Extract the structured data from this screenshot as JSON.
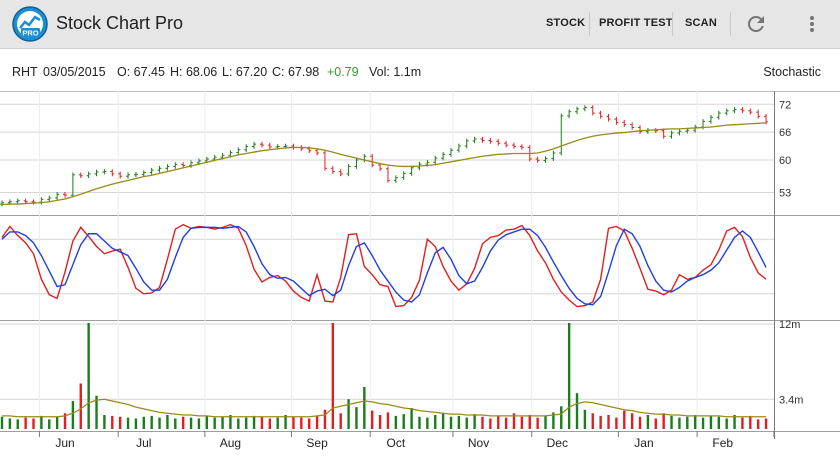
{
  "app": {
    "title": "Stock Chart Pro",
    "icon_label": "PRO",
    "accent": "#1a8fd6"
  },
  "toolbar": {
    "stock_label": "STOCK",
    "profit_test_label": "PROFIT TEST",
    "scan_label": "SCAN",
    "refresh_icon": "refresh-icon",
    "overflow_icon": "more-vert-icon"
  },
  "quote": {
    "symbol": "RHT",
    "date": "03/05/2015",
    "open": "O: 67.45",
    "high": "H: 68.06",
    "low": "L: 67.20",
    "close": "C: 67.98",
    "change": "+0.79",
    "volume": "Vol: 1.1m",
    "indicator": "Stochastic",
    "change_color": "#2e9c2e"
  },
  "chart_data": [
    {
      "type": "candlestick",
      "panel": "price",
      "y_ticks": [
        "72",
        "66",
        "60",
        "53"
      ],
      "ylim": [
        49,
        74
      ],
      "up_color": "#1b7d1b",
      "down_color": "#e02020",
      "ma_color": "#9a8a1a",
      "x": [
        0,
        2,
        4,
        6,
        8,
        10,
        12,
        14,
        16,
        18,
        20,
        22,
        24,
        26,
        28,
        30,
        32,
        34,
        36,
        38,
        40,
        42,
        44,
        46,
        48,
        50,
        52,
        54,
        56,
        58,
        60,
        62,
        64,
        66,
        68,
        70,
        72,
        74,
        76,
        78,
        80,
        82,
        84,
        86,
        88,
        90,
        92,
        94,
        96,
        98,
        100,
        102,
        104,
        106,
        108,
        110,
        112,
        114,
        116,
        118,
        120,
        122,
        124,
        126,
        128,
        130,
        132,
        134,
        136,
        138,
        140,
        142,
        144,
        146,
        148,
        150,
        152,
        154,
        156,
        158,
        160,
        162,
        164,
        166,
        168,
        170,
        172,
        174,
        176,
        178,
        180,
        182,
        184,
        186,
        188,
        190,
        192,
        194
      ],
      "close": [
        50.8,
        51,
        51.2,
        51,
        50.9,
        51.5,
        51.8,
        52.6,
        52.4,
        56.8,
        56.6,
        57,
        57.4,
        57.5,
        57,
        56.5,
        56.8,
        56.9,
        57.3,
        57.8,
        58.2,
        58.6,
        59,
        58.8,
        59.4,
        59.8,
        60.2,
        60.6,
        61,
        61.6,
        62.2,
        62.9,
        63.4,
        63.2,
        62.8,
        62.9,
        63,
        62.7,
        62.4,
        62,
        61.5,
        58.2,
        57.5,
        57,
        58.6,
        60,
        60.8,
        58.9,
        58.1,
        55.6,
        56.2,
        57.1,
        58.3,
        59.1,
        59.5,
        60.4,
        61.2,
        62.1,
        63,
        64.1,
        64.5,
        64.2,
        64,
        63.6,
        63.2,
        62.9,
        62.7,
        60.2,
        59.9,
        60.3,
        61.5,
        69.5,
        70.4,
        71,
        71.3,
        70.1,
        69.4,
        68.8,
        68.1,
        67.6,
        67,
        66.1,
        66.4,
        66.3,
        65.1,
        65.8,
        66.2,
        66.4,
        67.1,
        68.3,
        69.2,
        70.1,
        70.6,
        70.9,
        70.6,
        70.3,
        69.4,
        68.2
      ],
      "ma": [
        50.4,
        50.5,
        50.5,
        50.6,
        50.7,
        50.8,
        51,
        51.3,
        51.6,
        52.1,
        52.6,
        53.2,
        53.8,
        54.3,
        54.8,
        55.2,
        55.6,
        56,
        56.4,
        56.7,
        57.1,
        57.5,
        57.9,
        58.3,
        58.7,
        59.1,
        59.5,
        59.9,
        60.3,
        60.7,
        61.1,
        61.4,
        61.7,
        62,
        62.2,
        62.4,
        62.6,
        62.7,
        62.7,
        62.6,
        62.4,
        62.1,
        61.7,
        61.2,
        60.8,
        60.4,
        60,
        59.6,
        59.2,
        58.9,
        58.7,
        58.6,
        58.6,
        58.7,
        58.8,
        59,
        59.3,
        59.6,
        59.9,
        60.2,
        60.5,
        60.8,
        61,
        61.2,
        61.3,
        61.4,
        61.4,
        61.4,
        61.5,
        61.9,
        62.4,
        63,
        63.6,
        64.2,
        64.7,
        65.1,
        65.4,
        65.6,
        65.8,
        65.9,
        66.1,
        66.3,
        66.4,
        66.5,
        66.6,
        66.7,
        66.7,
        66.8,
        66.9,
        67,
        67.1,
        67.3,
        67.5,
        67.6,
        67.7,
        67.8,
        67.9,
        68
      ]
    },
    {
      "type": "line",
      "panel": "stochastic",
      "ylim": [
        0,
        100
      ],
      "series": [
        {
          "color": "#e02020",
          "values": [
            82,
            94,
            84,
            76,
            64,
            36,
            19,
            15,
            44,
            78,
            93,
            83,
            72,
            64,
            67,
            69,
            49,
            26,
            20,
            21,
            27,
            58,
            91,
            96,
            92,
            94,
            93,
            91,
            93,
            96,
            92,
            73,
            47,
            33,
            38,
            40,
            34,
            23,
            16,
            12,
            41,
            12,
            11,
            38,
            85,
            86,
            50,
            41,
            30,
            28,
            6,
            7,
            16,
            35,
            80,
            72,
            50,
            34,
            24,
            31,
            48,
            75,
            82,
            84,
            90,
            91,
            95,
            84,
            67,
            54,
            36,
            22,
            13,
            6,
            7,
            11,
            36,
            92,
            94,
            89,
            70,
            48,
            25,
            23,
            19,
            24,
            41,
            36,
            38,
            46,
            52,
            68,
            89,
            93,
            83,
            60,
            43,
            36
          ]
        },
        {
          "color": "#1f3fe0",
          "values": [
            80,
            88,
            88,
            84,
            76,
            62,
            45,
            28,
            30,
            52,
            74,
            86,
            86,
            78,
            70,
            66,
            62,
            48,
            33,
            24,
            24,
            36,
            60,
            82,
            92,
            93,
            93,
            93,
            92,
            93,
            94,
            88,
            72,
            53,
            41,
            37,
            38,
            34,
            26,
            18,
            23,
            25,
            18,
            24,
            51,
            72,
            76,
            62,
            46,
            34,
            22,
            13,
            11,
            19,
            43,
            65,
            71,
            58,
            40,
            31,
            34,
            49,
            67,
            79,
            85,
            88,
            91,
            91,
            84,
            71,
            55,
            40,
            26,
            15,
            9,
            8,
            17,
            44,
            73,
            91,
            86,
            72,
            51,
            34,
            24,
            22,
            27,
            34,
            38,
            41,
            46,
            54,
            68,
            82,
            89,
            82,
            66,
            49
          ]
        }
      ]
    },
    {
      "type": "bar",
      "panel": "volume",
      "y_ticks": [
        "12m",
        "3.4m"
      ],
      "ylim": [
        0,
        12
      ],
      "ma_color": "#9a8a1a",
      "values": [
        1.4,
        1.2,
        1.1,
        1.3,
        1.2,
        1.5,
        1.1,
        1.4,
        1.8,
        3.2,
        5.2,
        12,
        3.8,
        1.6,
        1.5,
        1.4,
        1.3,
        1.2,
        1.4,
        1.5,
        1.3,
        1.6,
        1.2,
        1.4,
        1.3,
        1.2,
        1.5,
        1.3,
        1.4,
        1.6,
        1.2,
        1.3,
        1.5,
        1.4,
        1.2,
        1.3,
        1.6,
        1.4,
        1.3,
        1.2,
        1.5,
        2.2,
        12,
        1.8,
        3.4,
        2.5,
        4.8,
        2.1,
        1.6,
        1.9,
        1.5,
        1.7,
        2.4,
        1.4,
        1.3,
        1.6,
        1.8,
        1.4,
        1.5,
        1.3,
        1.7,
        1.4,
        1.2,
        1.5,
        1.3,
        1.8,
        1.4,
        1.6,
        1.3,
        1.5,
        1.9,
        2.6,
        12,
        4.1,
        2.2,
        1.8,
        1.5,
        1.6,
        1.3,
        2.1,
        1.8,
        1.4,
        1.6,
        1.2,
        1.8,
        1.5,
        1.3,
        1.4,
        1.6,
        1.3,
        1.5,
        1.4,
        1.2,
        1.6,
        1.3,
        1.5,
        1.1,
        1.2
      ],
      "ma": [
        1.5,
        1.5,
        1.4,
        1.4,
        1.4,
        1.4,
        1.4,
        1.4,
        1.5,
        1.8,
        2.3,
        3,
        3.3,
        3.4,
        3.2,
        3,
        2.8,
        2.5,
        2.3,
        2.1,
        1.9,
        1.8,
        1.7,
        1.6,
        1.6,
        1.5,
        1.5,
        1.4,
        1.4,
        1.4,
        1.4,
        1.4,
        1.4,
        1.4,
        1.4,
        1.4,
        1.4,
        1.4,
        1.4,
        1.4,
        1.5,
        1.6,
        2.4,
        2.6,
        2.8,
        3,
        3.2,
        3.1,
        2.9,
        2.8,
        2.6,
        2.4,
        2.3,
        2.1,
        2,
        1.9,
        1.8,
        1.7,
        1.7,
        1.6,
        1.6,
        1.6,
        1.5,
        1.5,
        1.5,
        1.5,
        1.5,
        1.5,
        1.5,
        1.5,
        1.6,
        1.7,
        2.5,
        2.9,
        3.1,
        3,
        2.8,
        2.6,
        2.4,
        2.2,
        2.1,
        1.9,
        1.8,
        1.7,
        1.7,
        1.6,
        1.6,
        1.5,
        1.5,
        1.5,
        1.5,
        1.5,
        1.4,
        1.4,
        1.4,
        1.4,
        1.4,
        1.4
      ]
    },
    {
      "type": "axis",
      "panel": "months",
      "labels": [
        "Jun",
        "Jul",
        "Aug",
        "Sep",
        "Oct",
        "Nov",
        "Dec",
        "Jan",
        "Feb"
      ],
      "positions": [
        16,
        36,
        58,
        80,
        100,
        121,
        141,
        163,
        183
      ]
    }
  ]
}
